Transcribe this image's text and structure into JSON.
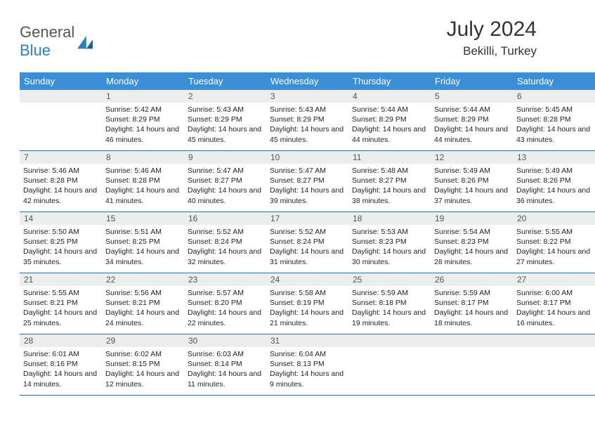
{
  "brand": {
    "part1": "General",
    "part2": "Blue"
  },
  "title": "July 2024",
  "location": "Bekilli, Turkey",
  "colors": {
    "header_bg": "#3b8fd6",
    "header_text": "#ffffff",
    "daynum_bg": "#eceded",
    "row_border": "#2b6aa3",
    "logo_blue": "#2b7fc3",
    "text": "#222222"
  },
  "weekdays": [
    "Sunday",
    "Monday",
    "Tuesday",
    "Wednesday",
    "Thursday",
    "Friday",
    "Saturday"
  ],
  "start_offset": 1,
  "days": [
    {
      "n": 1,
      "sr": "5:42 AM",
      "ss": "8:29 PM",
      "dl": "14 hours and 46 minutes."
    },
    {
      "n": 2,
      "sr": "5:43 AM",
      "ss": "8:29 PM",
      "dl": "14 hours and 45 minutes."
    },
    {
      "n": 3,
      "sr": "5:43 AM",
      "ss": "8:29 PM",
      "dl": "14 hours and 45 minutes."
    },
    {
      "n": 4,
      "sr": "5:44 AM",
      "ss": "8:29 PM",
      "dl": "14 hours and 44 minutes."
    },
    {
      "n": 5,
      "sr": "5:44 AM",
      "ss": "8:29 PM",
      "dl": "14 hours and 44 minutes."
    },
    {
      "n": 6,
      "sr": "5:45 AM",
      "ss": "8:28 PM",
      "dl": "14 hours and 43 minutes."
    },
    {
      "n": 7,
      "sr": "5:46 AM",
      "ss": "8:28 PM",
      "dl": "14 hours and 42 minutes."
    },
    {
      "n": 8,
      "sr": "5:46 AM",
      "ss": "8:28 PM",
      "dl": "14 hours and 41 minutes."
    },
    {
      "n": 9,
      "sr": "5:47 AM",
      "ss": "8:27 PM",
      "dl": "14 hours and 40 minutes."
    },
    {
      "n": 10,
      "sr": "5:47 AM",
      "ss": "8:27 PM",
      "dl": "14 hours and 39 minutes."
    },
    {
      "n": 11,
      "sr": "5:48 AM",
      "ss": "8:27 PM",
      "dl": "14 hours and 38 minutes."
    },
    {
      "n": 12,
      "sr": "5:49 AM",
      "ss": "8:26 PM",
      "dl": "14 hours and 37 minutes."
    },
    {
      "n": 13,
      "sr": "5:49 AM",
      "ss": "8:26 PM",
      "dl": "14 hours and 36 minutes."
    },
    {
      "n": 14,
      "sr": "5:50 AM",
      "ss": "8:25 PM",
      "dl": "14 hours and 35 minutes."
    },
    {
      "n": 15,
      "sr": "5:51 AM",
      "ss": "8:25 PM",
      "dl": "14 hours and 34 minutes."
    },
    {
      "n": 16,
      "sr": "5:52 AM",
      "ss": "8:24 PM",
      "dl": "14 hours and 32 minutes."
    },
    {
      "n": 17,
      "sr": "5:52 AM",
      "ss": "8:24 PM",
      "dl": "14 hours and 31 minutes."
    },
    {
      "n": 18,
      "sr": "5:53 AM",
      "ss": "8:23 PM",
      "dl": "14 hours and 30 minutes."
    },
    {
      "n": 19,
      "sr": "5:54 AM",
      "ss": "8:23 PM",
      "dl": "14 hours and 28 minutes."
    },
    {
      "n": 20,
      "sr": "5:55 AM",
      "ss": "8:22 PM",
      "dl": "14 hours and 27 minutes."
    },
    {
      "n": 21,
      "sr": "5:55 AM",
      "ss": "8:21 PM",
      "dl": "14 hours and 25 minutes."
    },
    {
      "n": 22,
      "sr": "5:56 AM",
      "ss": "8:21 PM",
      "dl": "14 hours and 24 minutes."
    },
    {
      "n": 23,
      "sr": "5:57 AM",
      "ss": "8:20 PM",
      "dl": "14 hours and 22 minutes."
    },
    {
      "n": 24,
      "sr": "5:58 AM",
      "ss": "8:19 PM",
      "dl": "14 hours and 21 minutes."
    },
    {
      "n": 25,
      "sr": "5:59 AM",
      "ss": "8:18 PM",
      "dl": "14 hours and 19 minutes."
    },
    {
      "n": 26,
      "sr": "5:59 AM",
      "ss": "8:17 PM",
      "dl": "14 hours and 18 minutes."
    },
    {
      "n": 27,
      "sr": "6:00 AM",
      "ss": "8:17 PM",
      "dl": "14 hours and 16 minutes."
    },
    {
      "n": 28,
      "sr": "6:01 AM",
      "ss": "8:16 PM",
      "dl": "14 hours and 14 minutes."
    },
    {
      "n": 29,
      "sr": "6:02 AM",
      "ss": "8:15 PM",
      "dl": "14 hours and 12 minutes."
    },
    {
      "n": 30,
      "sr": "6:03 AM",
      "ss": "8:14 PM",
      "dl": "14 hours and 11 minutes."
    },
    {
      "n": 31,
      "sr": "6:04 AM",
      "ss": "8:13 PM",
      "dl": "14 hours and 9 minutes."
    }
  ],
  "labels": {
    "sunrise": "Sunrise:",
    "sunset": "Sunset:",
    "daylight": "Daylight:"
  }
}
